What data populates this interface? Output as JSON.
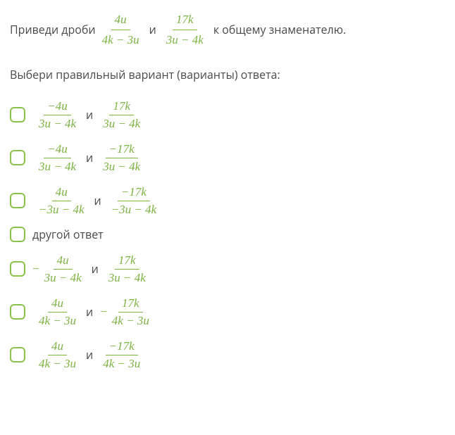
{
  "prompt": {
    "lead": "Приведи дроби",
    "and": "и",
    "tail": "к общему знаменателю.",
    "f1_num": "4u",
    "f1_den": "4k − 3u",
    "f2_num": "17k",
    "f2_den": "3u − 4k"
  },
  "instruction": "Выбери правильный вариант (варианты) ответа:",
  "conj": "и",
  "minus": "−",
  "options": [
    {
      "a_num": "−4u",
      "a_den": "3u − 4k",
      "b_num": "17k",
      "b_den": "3u − 4k",
      "a_neg": false,
      "b_neg": false,
      "text": null
    },
    {
      "a_num": "−4u",
      "a_den": "3u − 4k",
      "b_num": "−17k",
      "b_den": "3u − 4k",
      "a_neg": false,
      "b_neg": false,
      "text": null
    },
    {
      "a_num": "4u",
      "a_den": "−3u − 4k",
      "b_num": "−17k",
      "b_den": "−3u − 4k",
      "a_neg": false,
      "b_neg": false,
      "text": null
    },
    {
      "text": "другой ответ"
    },
    {
      "a_num": "4u",
      "a_den": "3u − 4k",
      "b_num": "17k",
      "b_den": "3u − 4k",
      "a_neg": true,
      "b_neg": false,
      "text": null
    },
    {
      "a_num": "4u",
      "a_den": "4k − 3u",
      "b_num": "17k",
      "b_den": "4k − 3u",
      "a_neg": false,
      "b_neg": true,
      "text": null
    },
    {
      "a_num": "4u",
      "a_den": "4k − 3u",
      "b_num": "−17k",
      "b_den": "4k − 3u",
      "a_neg": false,
      "b_neg": false,
      "text": null
    }
  ],
  "colors": {
    "math": "#7cb342",
    "checkbox_border": "#8bc34a",
    "text": "#4a4a4a",
    "background": "#ffffff"
  }
}
